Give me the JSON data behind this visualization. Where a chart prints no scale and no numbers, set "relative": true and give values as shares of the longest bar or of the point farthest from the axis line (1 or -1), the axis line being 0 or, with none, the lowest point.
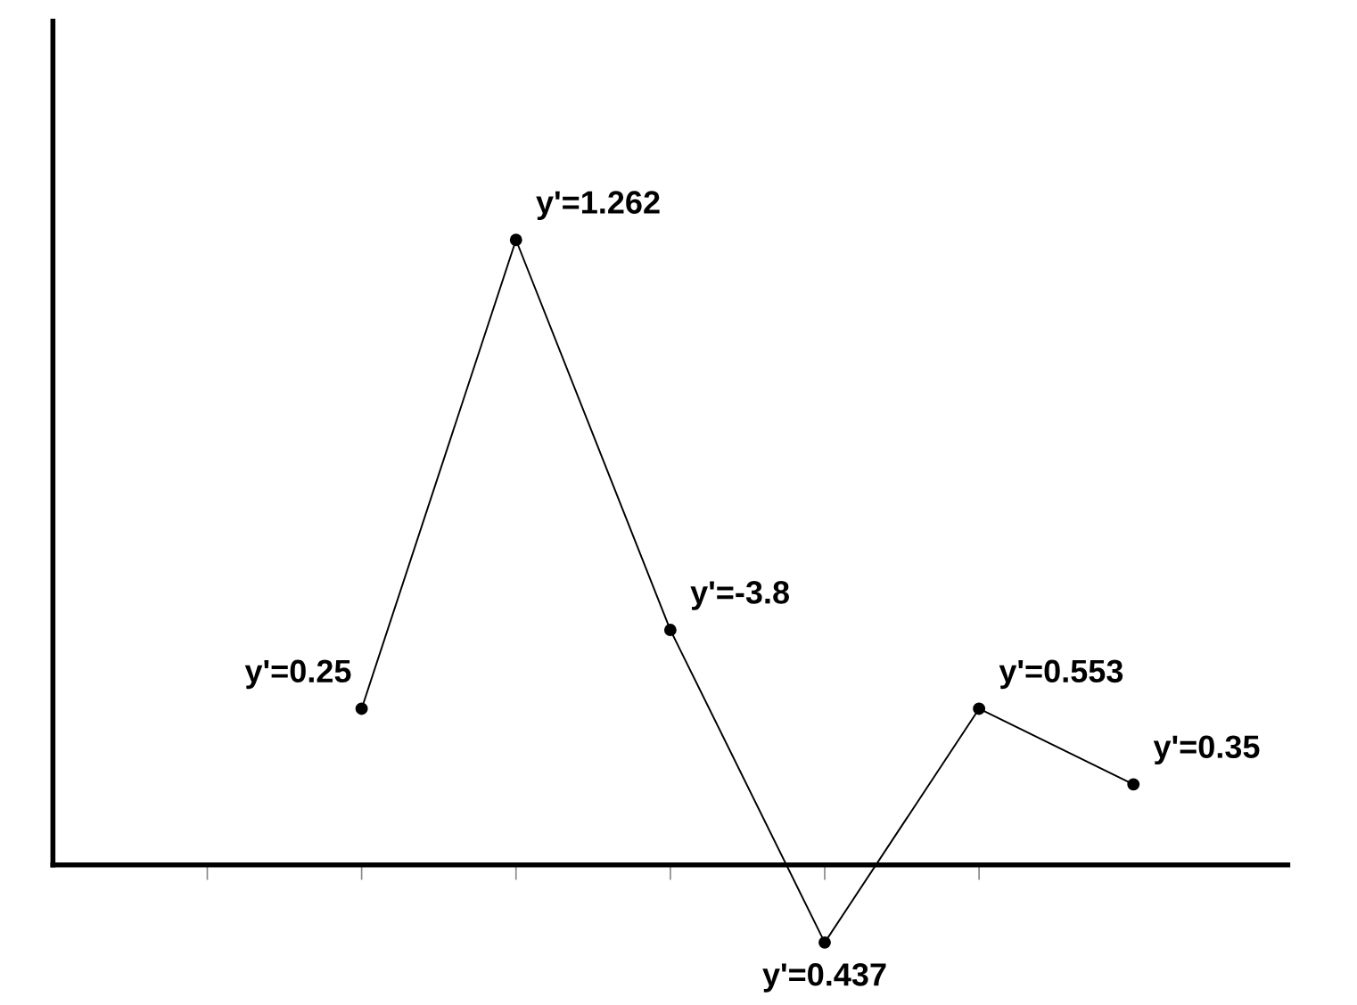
{
  "chart_data": {
    "type": "line",
    "relative": true,
    "line_style": "solid",
    "marker": "circle",
    "grid": false,
    "legend": false,
    "categories": [
      null,
      null,
      null,
      null,
      null,
      null
    ],
    "series": [
      {
        "color": "#000000",
        "values": [
          0.25,
          1,
          0.376,
          -0.124,
          0.25,
          0.129
        ]
      }
    ],
    "annotations": [
      "y'=0.25",
      "y'=1.262",
      "y'=-3.8",
      "y'=0.437",
      "y'=0.553",
      "y'=0.35"
    ]
  }
}
